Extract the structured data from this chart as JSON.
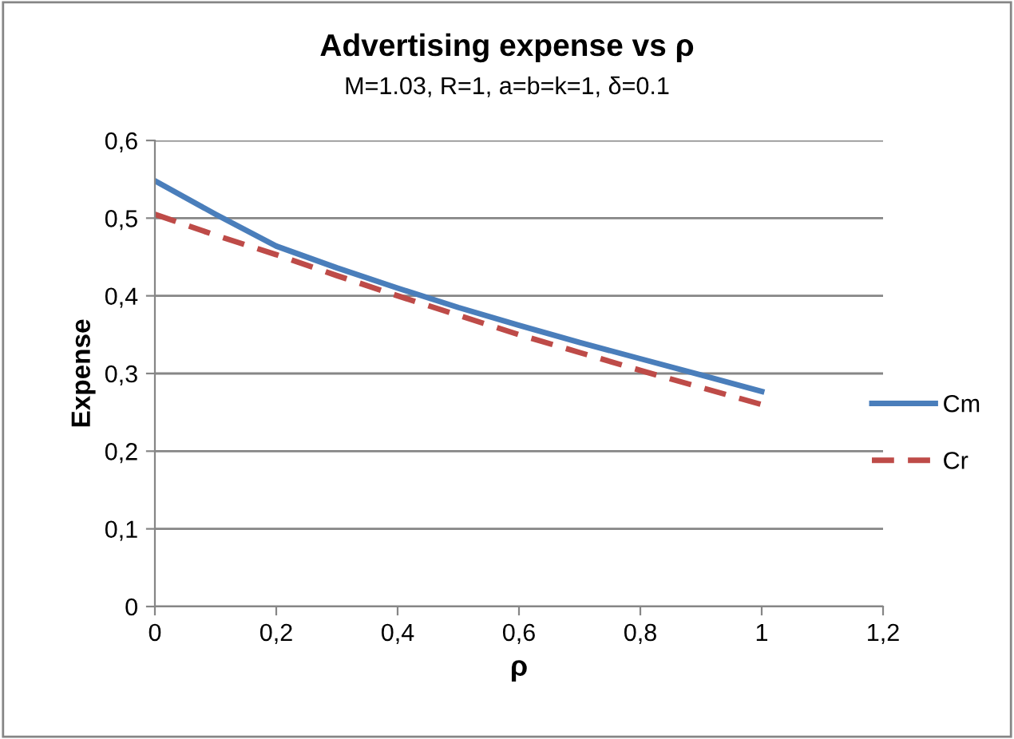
{
  "chart_data": {
    "type": "line",
    "title": "Advertising expense vs ρ",
    "subtitle": "M=1.03, R=1, a=b=k=1, δ=0.1",
    "xlabel": "ρ",
    "ylabel": "Expense",
    "x": [
      0,
      0.1,
      0.2,
      0.3,
      0.4,
      0.5,
      0.6,
      0.7,
      0.8,
      0.9,
      1
    ],
    "series": [
      {
        "name": "Cm",
        "color": "#4a7ebb",
        "line_style": "solid",
        "values": [
          0.548,
          0.505,
          0.464,
          0.436,
          0.41,
          0.385,
          0.362,
          0.34,
          0.319,
          0.298,
          0.277
        ]
      },
      {
        "name": "Cr",
        "color": "#be4b48",
        "line_style": "dashed",
        "values": [
          0.505,
          0.478,
          0.453,
          0.426,
          0.4,
          0.375,
          0.35,
          0.327,
          0.304,
          0.282,
          0.26
        ]
      }
    ],
    "xlim": [
      0,
      1.2
    ],
    "xticks": [
      {
        "value": 0,
        "label": "0"
      },
      {
        "value": 0.2,
        "label": "0,2"
      },
      {
        "value": 0.4,
        "label": "0,4"
      },
      {
        "value": 0.6,
        "label": "0,6"
      },
      {
        "value": 0.8,
        "label": "0,8"
      },
      {
        "value": 1,
        "label": "1"
      },
      {
        "value": 1.2,
        "label": "1,2"
      }
    ],
    "ylim": [
      0,
      0.6
    ],
    "yticks": [
      {
        "value": 0,
        "label": "0"
      },
      {
        "value": 0.1,
        "label": "0,1"
      },
      {
        "value": 0.2,
        "label": "0,2"
      },
      {
        "value": 0.3,
        "label": "0,3"
      },
      {
        "value": 0.4,
        "label": "0,4"
      },
      {
        "value": 0.5,
        "label": "0,5"
      },
      {
        "value": 0.6,
        "label": "0,6"
      }
    ],
    "grid": "y",
    "legend": "right",
    "marker": "none"
  }
}
